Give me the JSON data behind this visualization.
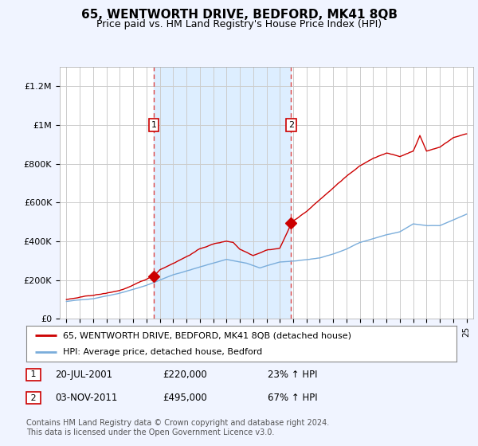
{
  "title": "65, WENTWORTH DRIVE, BEDFORD, MK41 8QB",
  "subtitle": "Price paid vs. HM Land Registry's House Price Index (HPI)",
  "title_fontsize": 11,
  "subtitle_fontsize": 9,
  "bg_color": "#f0f4ff",
  "plot_bg_color": "#ffffff",
  "grid_color": "#cccccc",
  "ylabel_ticks": [
    "£0",
    "£200K",
    "£400K",
    "£600K",
    "£800K",
    "£1M",
    "£1.2M"
  ],
  "ytick_values": [
    0,
    200000,
    400000,
    600000,
    800000,
    1000000,
    1200000
  ],
  "ylim": [
    0,
    1300000
  ],
  "xlim_start": 1994.5,
  "xlim_end": 2025.5,
  "shade_x_start": 2001.55,
  "shade_x_end": 2011.85,
  "shade_color": "#ddeeff",
  "sale1_x": 2001.55,
  "sale1_y": 220000,
  "sale1_label": "1",
  "sale2_x": 2011.85,
  "sale2_y": 495000,
  "sale2_label": "2",
  "red_line_color": "#cc0000",
  "blue_line_color": "#7aaddb",
  "dashed_line_color": "#dd4444",
  "legend_entries": [
    "65, WENTWORTH DRIVE, BEDFORD, MK41 8QB (detached house)",
    "HPI: Average price, detached house, Bedford"
  ],
  "annotation1_date": "20-JUL-2001",
  "annotation1_price": "£220,000",
  "annotation1_hpi": "23% ↑ HPI",
  "annotation2_date": "03-NOV-2011",
  "annotation2_price": "£495,000",
  "annotation2_hpi": "67% ↑ HPI",
  "footer": "Contains HM Land Registry data © Crown copyright and database right 2024.\nThis data is licensed under the Open Government Licence v3.0."
}
